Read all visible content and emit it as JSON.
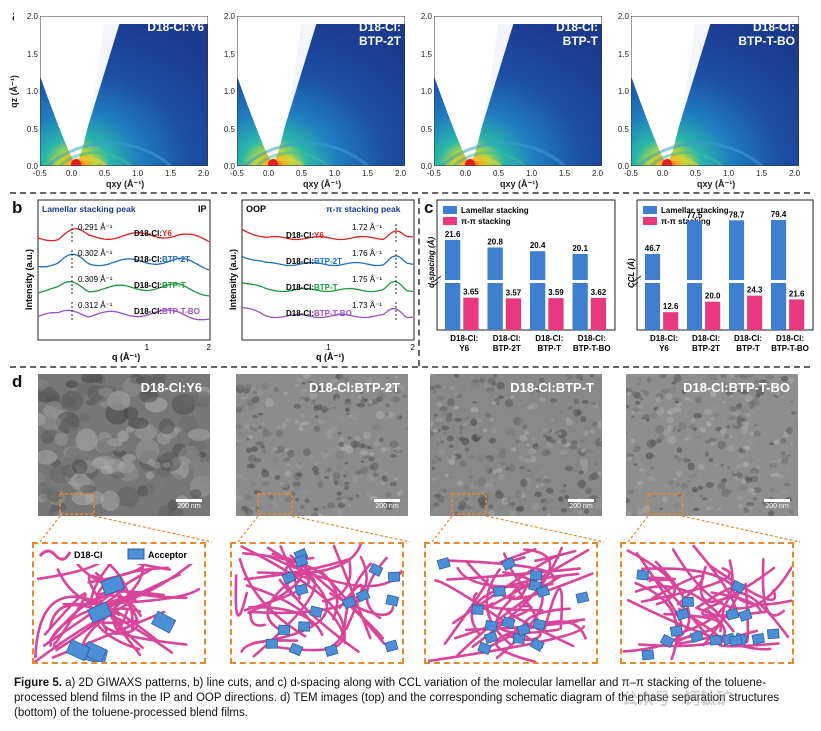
{
  "panel_labels": {
    "a": "a",
    "b": "b",
    "c": "c",
    "d": "d"
  },
  "giwaxs": {
    "titles": [
      "D18-Cl:Y6",
      "D18-Cl:\nBTP-2T",
      "D18-Cl:\nBTP-T",
      "D18-Cl:\nBTP-T-BO"
    ],
    "title_lines": [
      [
        "D18-Cl:Y6"
      ],
      [
        "D18-Cl:",
        "BTP-2T"
      ],
      [
        "D18-Cl:",
        "BTP-T"
      ],
      [
        "D18-Cl:",
        "BTP-T-BO"
      ]
    ],
    "ylabel": "qz (Å⁻¹)",
    "xlabel": "qxy (Å⁻¹)",
    "yticks": [
      "0.0",
      "0.5",
      "1.0",
      "1.5",
      "2.0"
    ],
    "xticks": [
      "-0.5",
      "0.0",
      "0.5",
      "1.0",
      "1.5",
      "2.0"
    ]
  },
  "line_cuts": {
    "ip": {
      "tag": "IP",
      "annotation": "Lamellar stacking peak",
      "ylabel": "Intensity (a.u.)",
      "xlabel": "q (Å⁻¹)",
      "xticks": [
        "1",
        "2"
      ],
      "curves": [
        {
          "prefix": "D18-Cl:",
          "name": "Y6",
          "color": "#e02020",
          "peak": "0.291 Å⁻¹"
        },
        {
          "prefix": "D18-Cl:",
          "name": "BTP-2T",
          "color": "#1f6fc0",
          "peak": "0.302 Å⁻¹"
        },
        {
          "prefix": "D18-Cl:",
          "name": "BTP-T",
          "color": "#1a9a3a",
          "peak": "0.309 Å⁻¹"
        },
        {
          "prefix": "D18-Cl:",
          "name": "BTP-T-BO",
          "color": "#9b4fc8",
          "peak": "0.312 Å⁻¹"
        }
      ]
    },
    "oop": {
      "tag": "OOP",
      "annotation": "π-π stacking peak",
      "ylabel": "Intensity (a.u.)",
      "xlabel": "q (Å⁻¹)",
      "xticks": [
        "1",
        "2"
      ],
      "curves": [
        {
          "prefix": "D18-Cl:",
          "name": "Y6",
          "color": "#e02020",
          "peak": "1.72 Å⁻¹"
        },
        {
          "prefix": "D18-Cl:",
          "name": "BTP-2T",
          "color": "#1f6fc0",
          "peak": "1.76 Å⁻¹"
        },
        {
          "prefix": "D18-Cl:",
          "name": "BTP-T",
          "color": "#1a9a3a",
          "peak": "1.75 Å⁻¹"
        },
        {
          "prefix": "D18-Cl:",
          "name": "BTP-T-BO",
          "color": "#9b4fc8",
          "peak": "1.73 Å⁻¹"
        }
      ]
    }
  },
  "chart_data": [
    {
      "type": "bar",
      "title": "d-spacing",
      "ylabel": "d-spacing (Å)",
      "categories": [
        "D18-Cl:\nY6",
        "D18-Cl:\nBTP-2T",
        "D18-Cl:\nBTP-T",
        "D18-Cl:\nBTP-T-BO"
      ],
      "category_lines": [
        [
          "D18-Cl:",
          "Y6"
        ],
        [
          "D18-Cl:",
          "BTP-2T"
        ],
        [
          "D18-Cl:",
          "BTP-T"
        ],
        [
          "D18-Cl:",
          "BTP-T-BO"
        ]
      ],
      "series": [
        {
          "name": "Lamellar stacking",
          "color": "#3f7fd0",
          "values": [
            21.6,
            20.8,
            20.4,
            20.1
          ],
          "labels": [
            "21.6",
            "20.8",
            "20.4",
            "20.1"
          ]
        },
        {
          "name": "π-π stacking",
          "color": "#e8387f",
          "values": [
            3.65,
            3.57,
            3.59,
            3.62
          ],
          "labels": [
            "3.65",
            "3.57",
            "3.59",
            "3.62"
          ]
        }
      ],
      "axis_break": true
    },
    {
      "type": "bar",
      "title": "CCL",
      "ylabel": "CCL (Å)",
      "categories": [
        "D18-Cl:\nY6",
        "D18-Cl:\nBTP-2T",
        "D18-Cl:\nBTP-T",
        "D18-Cl:\nBTP-T-BO"
      ],
      "category_lines": [
        [
          "D18-Cl:",
          "Y6"
        ],
        [
          "D18-Cl:",
          "BTP-2T"
        ],
        [
          "D18-Cl:",
          "BTP-T"
        ],
        [
          "D18-Cl:",
          "BTP-T-BO"
        ]
      ],
      "series": [
        {
          "name": "Lamellar stacking",
          "color": "#3f7fd0",
          "values": [
            46.7,
            77.5,
            78.7,
            79.4
          ],
          "labels": [
            "46.7",
            "77.5",
            "78.7",
            "79.4"
          ]
        },
        {
          "name": "π-π stacking",
          "color": "#e8387f",
          "values": [
            12.6,
            20.0,
            24.3,
            21.6
          ],
          "labels": [
            "12.6",
            "20.0",
            "24.3",
            "21.6"
          ]
        }
      ],
      "axis_break": true
    }
  ],
  "tem": {
    "labels": [
      "D18-Cl:Y6",
      "D18-Cl:BTP-2T",
      "D18-Cl:BTP-T",
      "D18-Cl:BTP-T-BO"
    ],
    "scale": "200 nm"
  },
  "schematic": {
    "legend_donor": "D18-Cl",
    "legend_acceptor": "Acceptor"
  },
  "caption": {
    "lead": "Figure 5.",
    "text": " a) 2D GIWAXS patterns, b) line cuts, and c) d-spacing along with CCL variation of the molecular lamellar and π–π stacking of the toluene-processed blend films in the IP and OOP directions. d) TEM images (top) and the corresponding schematic diagram of the phase separation structures (bottom) of the toluene-processed blend films."
  },
  "watermark": "公众号 · 钙钛矿"
}
